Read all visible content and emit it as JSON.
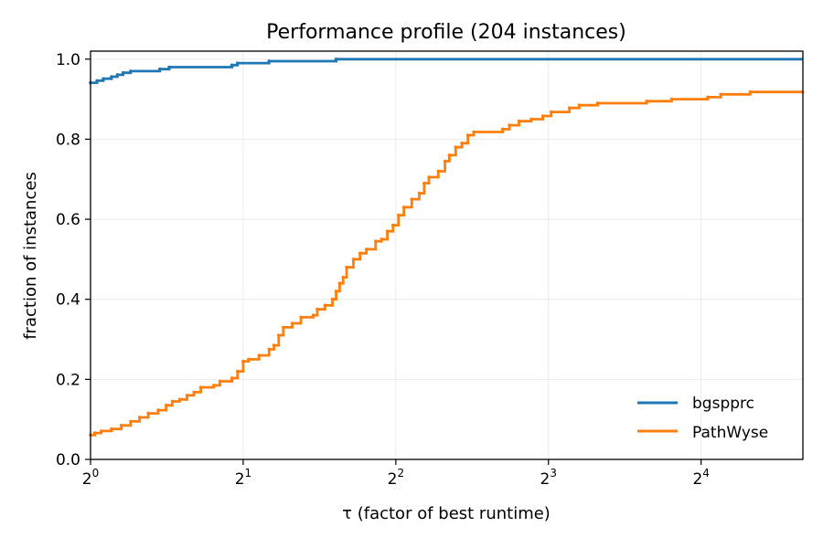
{
  "chart_data": {
    "type": "line",
    "title": "Performance profile (204 instances)",
    "xlabel": "τ (factor of best runtime)",
    "ylabel": "fraction of instances",
    "x_scale": "log2",
    "xlim": [
      1,
      25.4
    ],
    "ylim": [
      0,
      1.02
    ],
    "x_ticks": [
      {
        "base": "2",
        "exp": "0"
      },
      {
        "base": "2",
        "exp": "1"
      },
      {
        "base": "2",
        "exp": "2"
      },
      {
        "base": "2",
        "exp": "3"
      },
      {
        "base": "2",
        "exp": "4"
      }
    ],
    "x_tick_values": [
      1,
      2,
      4,
      8,
      16
    ],
    "y_ticks": [
      "0.0",
      "0.2",
      "0.4",
      "0.6",
      "0.8",
      "1.0"
    ],
    "y_tick_values": [
      0,
      0.2,
      0.4,
      0.6,
      0.8,
      1.0
    ],
    "grid": true,
    "legend_position": "lower right",
    "series": [
      {
        "name": "bgspprc",
        "color": "#1f77b4",
        "points": [
          [
            1.0,
            0.941
          ],
          [
            1.03,
            0.946
          ],
          [
            1.06,
            0.951
          ],
          [
            1.1,
            0.956
          ],
          [
            1.13,
            0.961
          ],
          [
            1.16,
            0.966
          ],
          [
            1.2,
            0.97
          ],
          [
            1.37,
            0.975
          ],
          [
            1.43,
            0.98
          ],
          [
            1.9,
            0.985
          ],
          [
            1.95,
            0.99
          ],
          [
            2.25,
            0.995
          ],
          [
            3.05,
            1.0
          ],
          [
            25.4,
            1.0
          ]
        ]
      },
      {
        "name": "PathWyse",
        "color": "#ff7f0e",
        "points": [
          [
            1.0,
            0.061
          ],
          [
            1.02,
            0.066
          ],
          [
            1.05,
            0.071
          ],
          [
            1.1,
            0.076
          ],
          [
            1.15,
            0.085
          ],
          [
            1.2,
            0.095
          ],
          [
            1.25,
            0.105
          ],
          [
            1.3,
            0.115
          ],
          [
            1.36,
            0.123
          ],
          [
            1.41,
            0.135
          ],
          [
            1.45,
            0.145
          ],
          [
            1.5,
            0.15
          ],
          [
            1.55,
            0.16
          ],
          [
            1.6,
            0.168
          ],
          [
            1.65,
            0.18
          ],
          [
            1.75,
            0.185
          ],
          [
            1.8,
            0.195
          ],
          [
            1.9,
            0.203
          ],
          [
            1.95,
            0.22
          ],
          [
            2.0,
            0.245
          ],
          [
            2.05,
            0.25
          ],
          [
            2.15,
            0.26
          ],
          [
            2.25,
            0.275
          ],
          [
            2.3,
            0.285
          ],
          [
            2.35,
            0.31
          ],
          [
            2.4,
            0.33
          ],
          [
            2.5,
            0.34
          ],
          [
            2.6,
            0.355
          ],
          [
            2.75,
            0.36
          ],
          [
            2.8,
            0.375
          ],
          [
            2.9,
            0.385
          ],
          [
            3.0,
            0.4
          ],
          [
            3.05,
            0.42
          ],
          [
            3.1,
            0.44
          ],
          [
            3.15,
            0.455
          ],
          [
            3.2,
            0.48
          ],
          [
            3.3,
            0.5
          ],
          [
            3.4,
            0.515
          ],
          [
            3.5,
            0.525
          ],
          [
            3.65,
            0.545
          ],
          [
            3.75,
            0.55
          ],
          [
            3.85,
            0.57
          ],
          [
            3.95,
            0.585
          ],
          [
            4.05,
            0.61
          ],
          [
            4.15,
            0.63
          ],
          [
            4.3,
            0.65
          ],
          [
            4.45,
            0.665
          ],
          [
            4.55,
            0.69
          ],
          [
            4.65,
            0.705
          ],
          [
            4.85,
            0.72
          ],
          [
            5.0,
            0.745
          ],
          [
            5.1,
            0.76
          ],
          [
            5.25,
            0.78
          ],
          [
            5.4,
            0.79
          ],
          [
            5.55,
            0.81
          ],
          [
            5.7,
            0.818
          ],
          [
            6.5,
            0.825
          ],
          [
            6.7,
            0.835
          ],
          [
            7.0,
            0.845
          ],
          [
            7.4,
            0.85
          ],
          [
            7.8,
            0.858
          ],
          [
            8.1,
            0.868
          ],
          [
            8.8,
            0.878
          ],
          [
            9.2,
            0.885
          ],
          [
            10.0,
            0.89
          ],
          [
            12.5,
            0.895
          ],
          [
            14.0,
            0.9
          ],
          [
            16.5,
            0.905
          ],
          [
            17.5,
            0.912
          ],
          [
            20.0,
            0.918
          ],
          [
            25.4,
            0.92
          ]
        ]
      }
    ]
  }
}
